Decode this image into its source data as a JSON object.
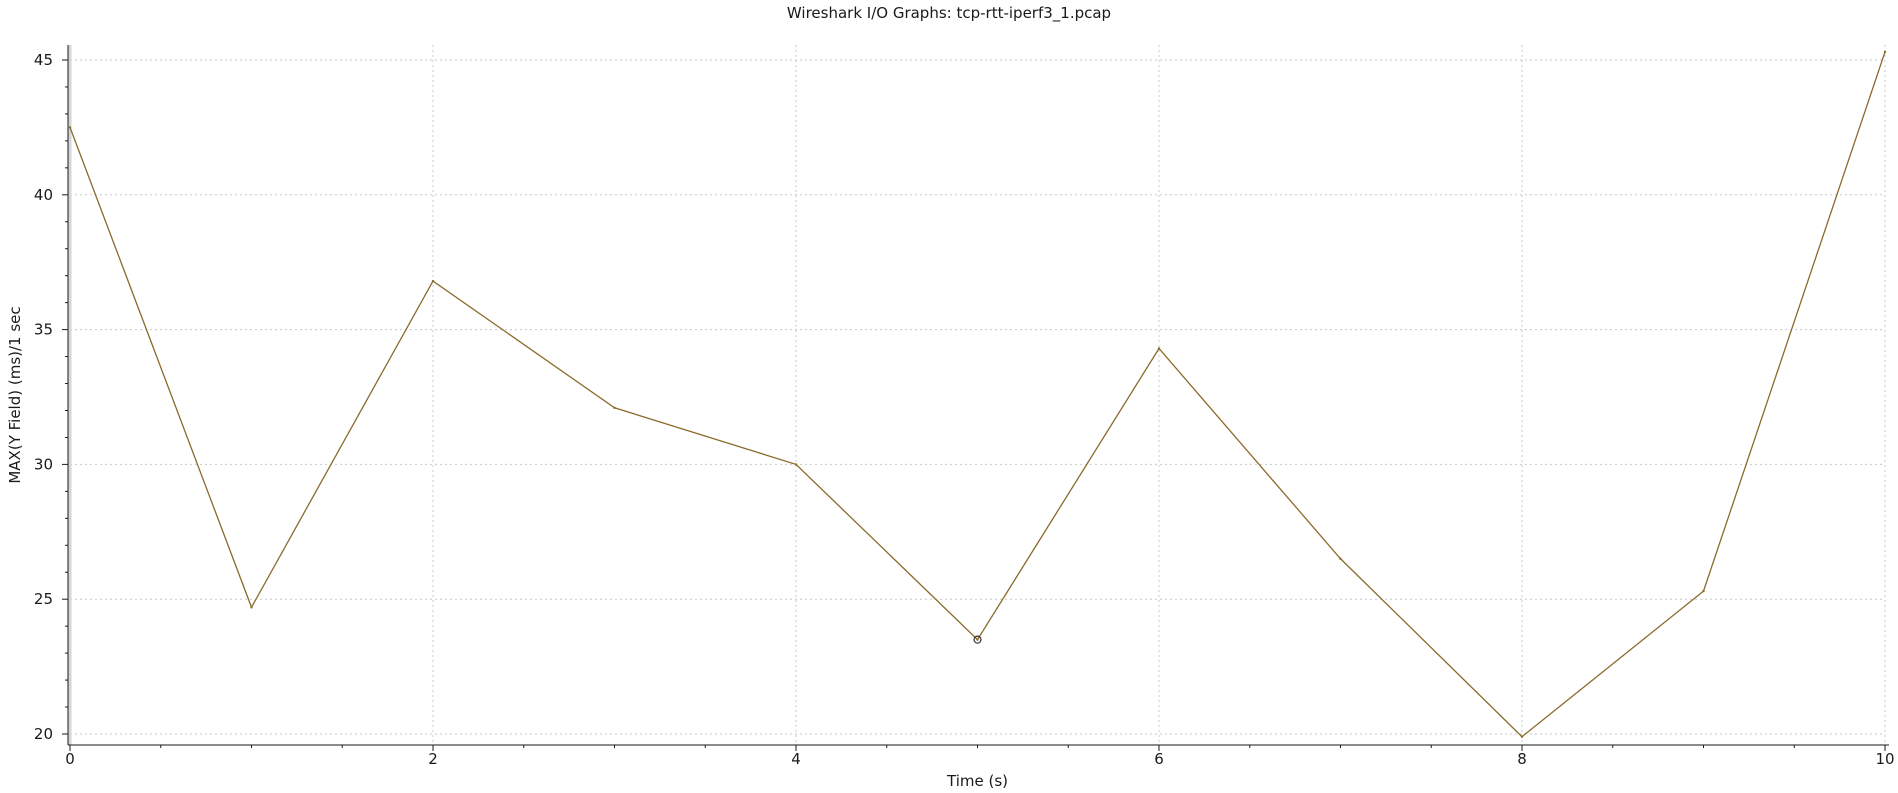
{
  "window": {
    "title": "Wireshark I/O Graphs: tcp-rtt-iperf3_1.pcap"
  },
  "colors": {
    "series": "#8b6a2b",
    "grid": "#c8c8c8",
    "axis": "#1a1a1a",
    "background": "#ffffff"
  },
  "chart_data": {
    "type": "line",
    "title": "Wireshark I/O Graphs: tcp-rtt-iperf3_1.pcap",
    "xlabel": "Time (s)",
    "ylabel": "MAX(Y Field) (ms)/1 sec",
    "xlim": [
      0,
      10
    ],
    "ylim": [
      20,
      45
    ],
    "xticks": [
      "0",
      "2",
      "4",
      "6",
      "8",
      "10"
    ],
    "yticks": [
      "20",
      "25",
      "30",
      "35",
      "40",
      "45"
    ],
    "grid": true,
    "series": [
      {
        "x": [
          0,
          1,
          2,
          3,
          4,
          5,
          6,
          7,
          8,
          9,
          10
        ],
        "y": [
          42.5,
          24.7,
          36.8,
          32.1,
          30.0,
          23.5,
          34.3,
          26.5,
          19.9,
          25.3,
          45.3
        ]
      }
    ],
    "highlighted_point": {
      "x": 5,
      "y": 23.5
    }
  }
}
